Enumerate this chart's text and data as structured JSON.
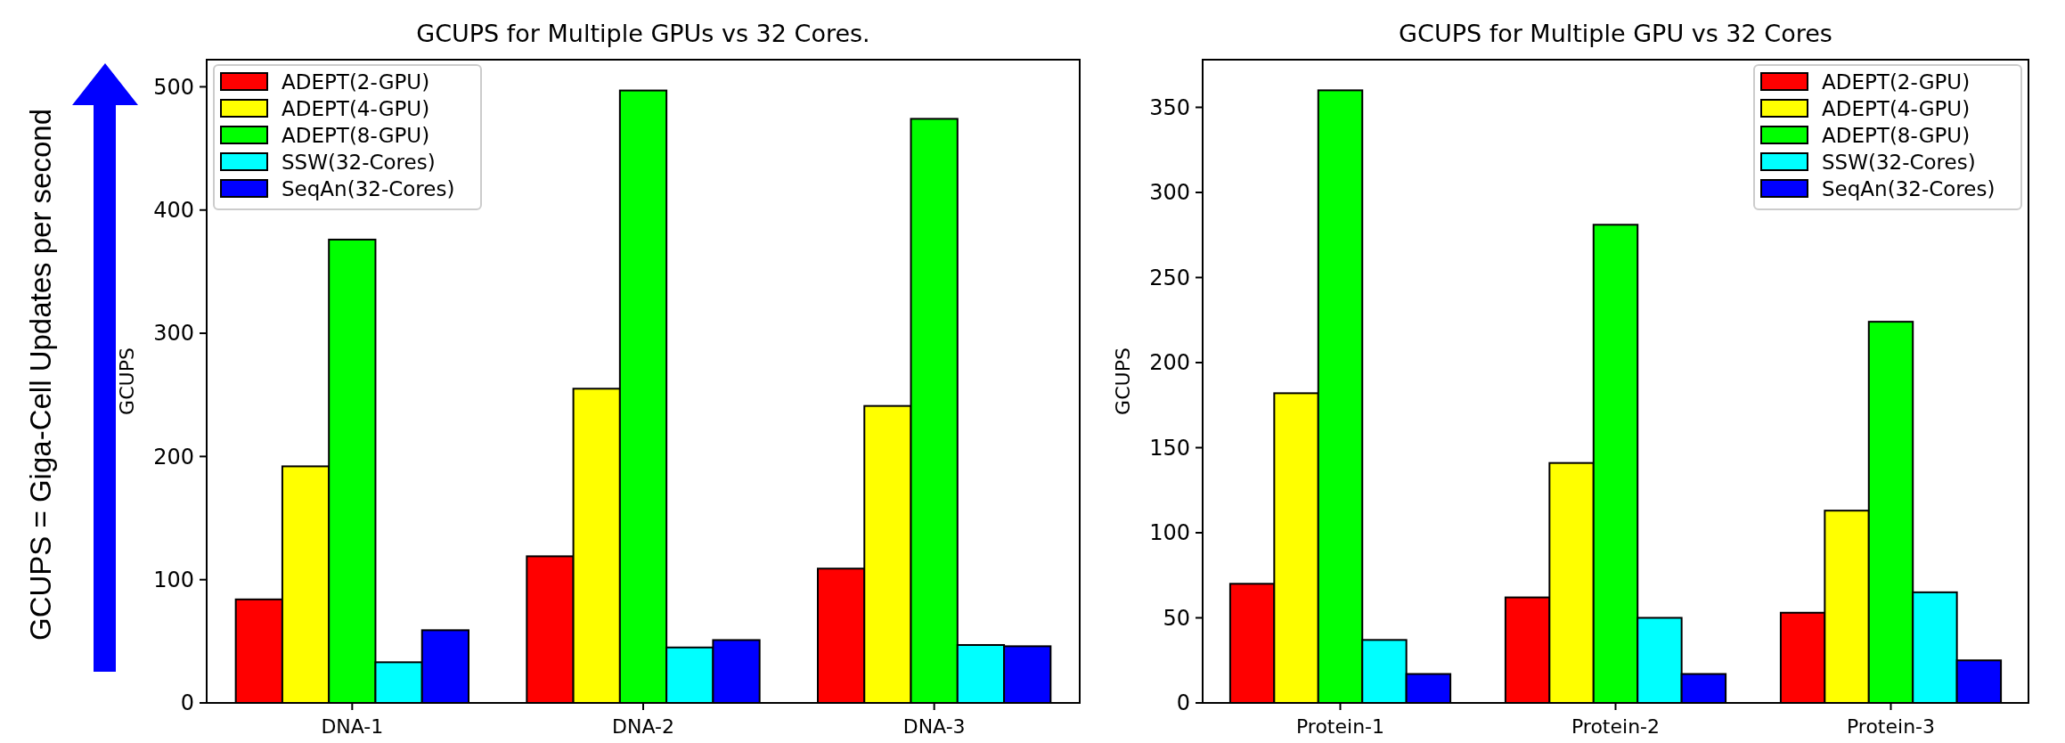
{
  "chart_data": [
    {
      "type": "bar",
      "title": "GCUPS for Multiple GPUs vs 32 Cores.",
      "ylabel": "GCUPS",
      "annotations": [
        "GCUPS = Giga-Cell Updates per second"
      ],
      "categories": [
        "DNA-1",
        "DNA-2",
        "DNA-3"
      ],
      "series": [
        {
          "name": "ADEPT(2-GPU)",
          "color": "#ff0000",
          "values": [
            84,
            119,
            109
          ]
        },
        {
          "name": "ADEPT(4-GPU)",
          "color": "#ffff00",
          "values": [
            192,
            255,
            241
          ]
        },
        {
          "name": "ADEPT(8-GPU)",
          "color": "#00ff00",
          "values": [
            376,
            497,
            474
          ]
        },
        {
          "name": "SSW(32-Cores)",
          "color": "#00ffff",
          "values": [
            33,
            45,
            47
          ]
        },
        {
          "name": "SeqAn(32-Cores)",
          "color": "#0000ff",
          "values": [
            59,
            51,
            46
          ]
        }
      ],
      "ylim": [
        0,
        522
      ],
      "yticks": [
        0,
        100,
        200,
        300,
        400,
        500
      ],
      "legend": "top left"
    },
    {
      "type": "bar",
      "title": "GCUPS for Multiple GPU vs 32 Cores",
      "ylabel": "GCUPS",
      "categories": [
        "Protein-1",
        "Protein-2",
        "Protein-3"
      ],
      "series": [
        {
          "name": "ADEPT(2-GPU)",
          "color": "#ff0000",
          "values": [
            70,
            62,
            53
          ]
        },
        {
          "name": "ADEPT(4-GPU)",
          "color": "#ffff00",
          "values": [
            182,
            141,
            113
          ]
        },
        {
          "name": "ADEPT(8-GPU)",
          "color": "#00ff00",
          "values": [
            360,
            281,
            224
          ]
        },
        {
          "name": "SSW(32-Cores)",
          "color": "#00ffff",
          "values": [
            37,
            50,
            65
          ]
        },
        {
          "name": "SeqAn(32-Cores)",
          "color": "#0000ff",
          "values": [
            17,
            17,
            25
          ]
        }
      ],
      "ylim": [
        0,
        378
      ],
      "yticks": [
        0,
        50,
        100,
        150,
        200,
        250,
        300,
        350
      ],
      "legend": "top right"
    }
  ]
}
